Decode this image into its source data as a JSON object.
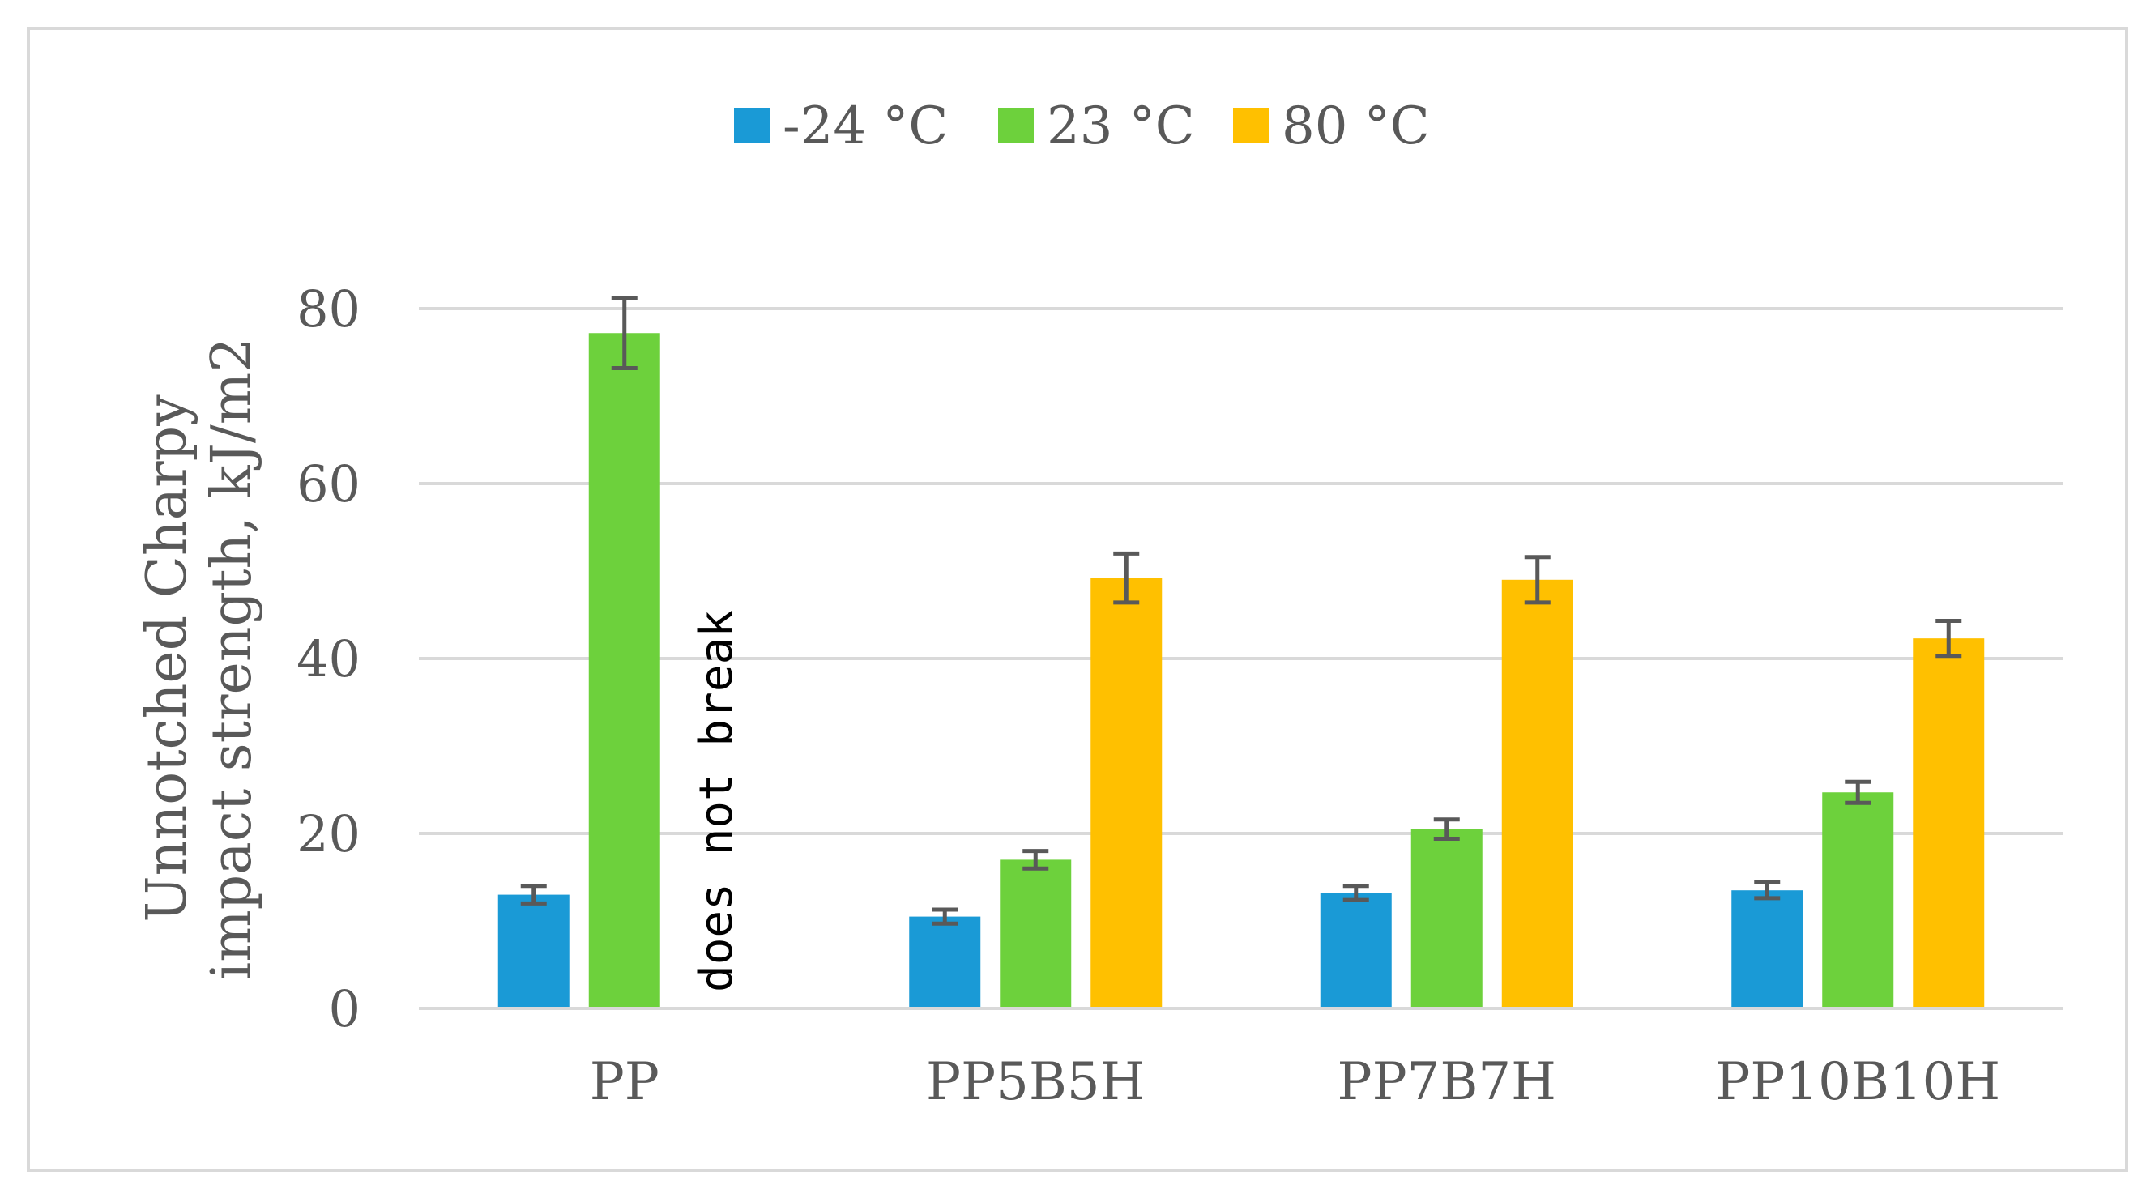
{
  "chart_data": {
    "type": "bar",
    "title": "",
    "xlabel": "",
    "ylabel": "Unnotched Charpy impact strength, kJ/m2",
    "ylabel_lines": [
      "Unnotched Charpy",
      "impact strength, kJ/m2"
    ],
    "ylim": [
      0,
      80
    ],
    "yticks": [
      0,
      20,
      40,
      60,
      80
    ],
    "grid": true,
    "legend_position": "top-center",
    "categories": [
      "PP",
      "PP5B5H",
      "PP7B7H",
      "PP10B10H"
    ],
    "series": [
      {
        "name": "-24 °C",
        "color": "#1a9ad6",
        "values": [
          13,
          10.5,
          13.2,
          13.5
        ],
        "errors": [
          1.0,
          0.8,
          0.8,
          0.9
        ]
      },
      {
        "name": "23 °C",
        "color": "#6dd13c",
        "values": [
          77.2,
          17,
          20.5,
          24.7
        ],
        "errors": [
          4.0,
          1.0,
          1.1,
          1.2
        ]
      },
      {
        "name": "80 °C",
        "color": "#ffc000",
        "values": [
          null,
          49.2,
          49,
          42.3
        ],
        "errors": [
          null,
          2.8,
          2.6,
          2.0
        ]
      }
    ],
    "annotations": [
      {
        "text": "does not break",
        "category": "PP",
        "series": "80 °C"
      }
    ]
  }
}
